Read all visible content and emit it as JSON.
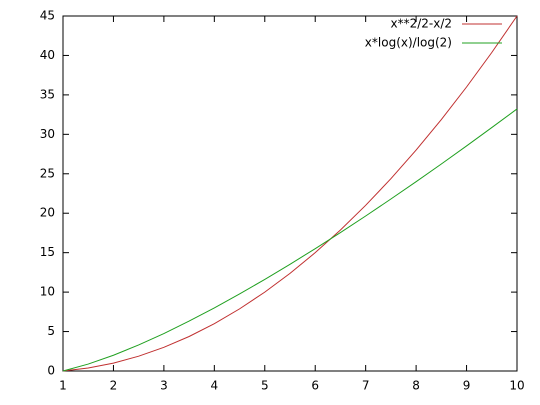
{
  "chart_data": {
    "type": "line",
    "x": [
      1,
      1.5,
      2,
      2.5,
      3,
      3.5,
      4,
      4.5,
      5,
      5.5,
      6,
      6.5,
      7,
      7.5,
      8,
      8.5,
      9,
      9.5,
      10
    ],
    "series": [
      {
        "name": "x**2/2-x/2",
        "color": "#c03030",
        "values": [
          0,
          0.375,
          1,
          1.875,
          3,
          4.375,
          6,
          7.875,
          10,
          12.375,
          15,
          17.875,
          21,
          24.375,
          28,
          31.875,
          36,
          40.375,
          45
        ]
      },
      {
        "name": "x*log(x)/log(2)",
        "color": "#20a020",
        "values": [
          0,
          0.88,
          2,
          3.3,
          4.75,
          6.33,
          8,
          9.77,
          11.61,
          13.53,
          15.51,
          17.55,
          19.65,
          21.8,
          24,
          26.24,
          28.53,
          30.86,
          33.22
        ]
      }
    ],
    "xlim": [
      1,
      10
    ],
    "ylim": [
      0,
      45
    ],
    "xticks": [
      1,
      2,
      3,
      4,
      5,
      6,
      7,
      8,
      9,
      10
    ],
    "yticks": [
      0,
      5,
      10,
      15,
      20,
      25,
      30,
      35,
      40,
      45
    ],
    "legend": "top-right"
  }
}
